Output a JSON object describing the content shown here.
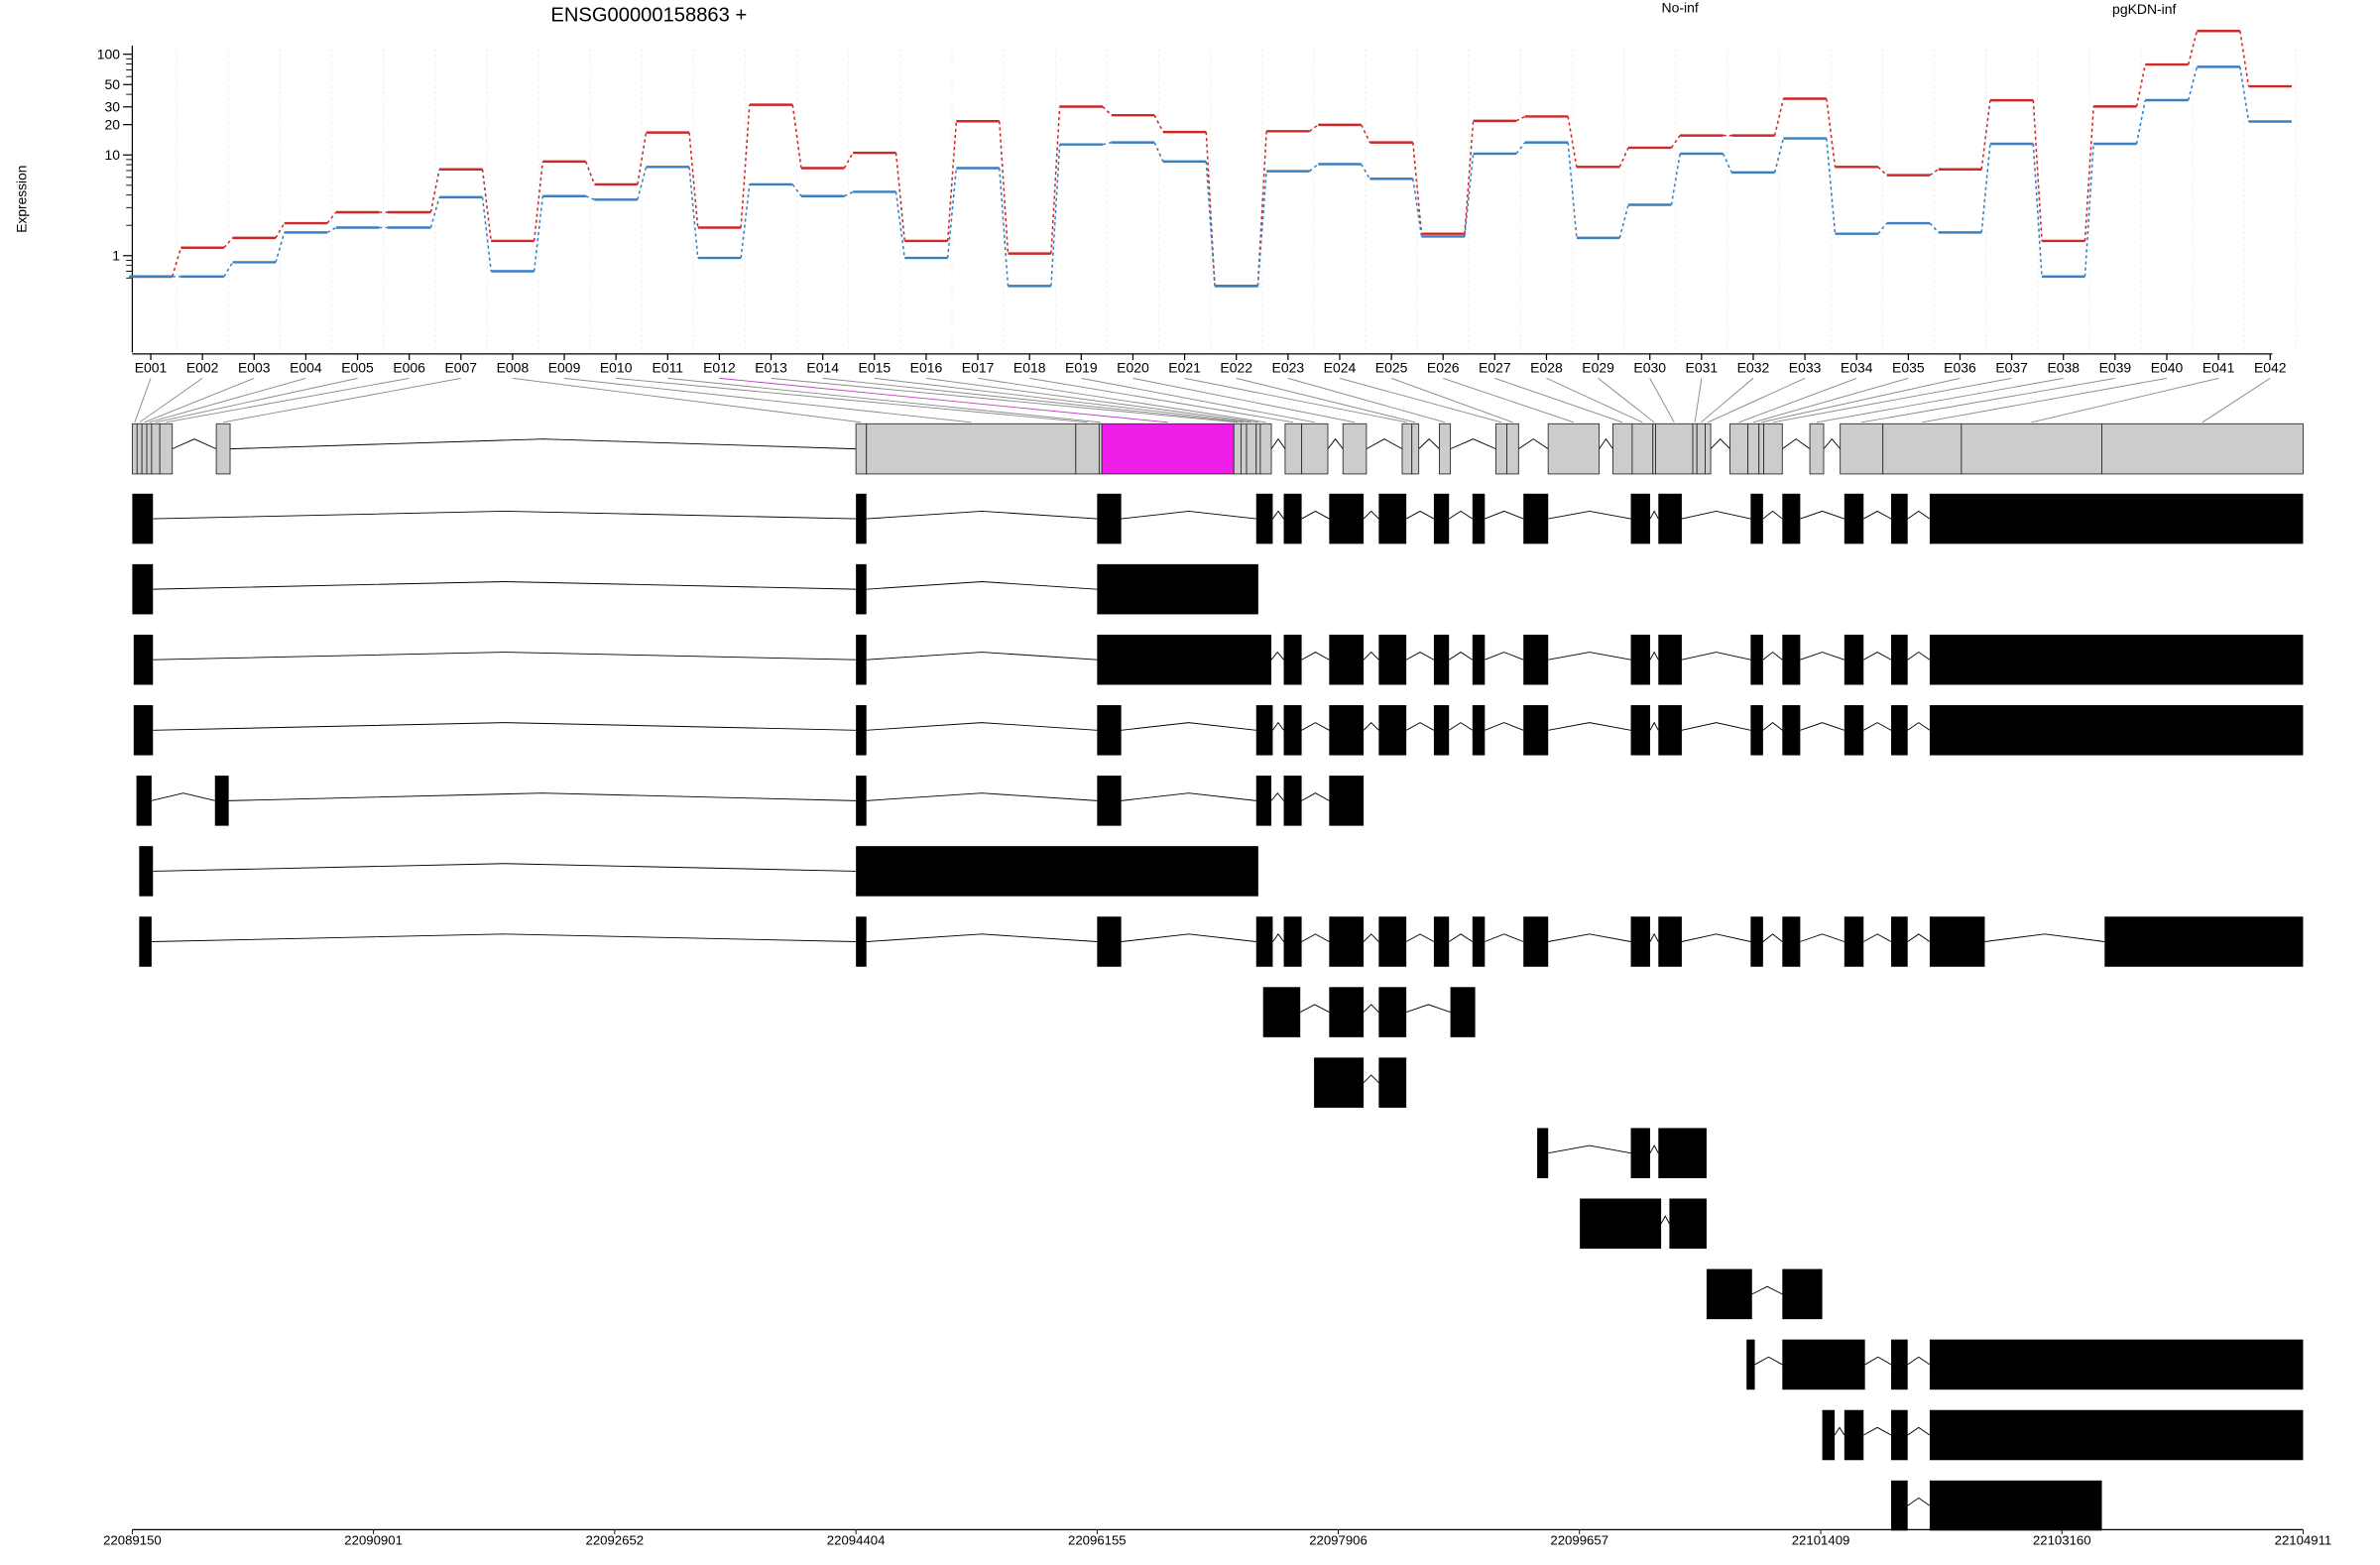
{
  "chart_data": {
    "type": "line",
    "title": "ENSG00000158863 +",
    "ylabel": "Expression",
    "y_scale": "log",
    "ylim": [
      0.5,
      170
    ],
    "yticks": [
      1,
      10,
      20,
      30,
      50,
      100
    ],
    "grid": "vertical",
    "legend_placement": "top-right",
    "categories": [
      "E001",
      "E002",
      "E003",
      "E004",
      "E005",
      "E006",
      "E007",
      "E008",
      "E009",
      "E010",
      "E011",
      "E012",
      "E013",
      "E014",
      "E015",
      "E016",
      "E017",
      "E018",
      "E019",
      "E020",
      "E021",
      "E022",
      "E023",
      "E024",
      "E025",
      "E026",
      "E027",
      "E028",
      "E029",
      "E030",
      "E031",
      "E032",
      "E033",
      "E034",
      "E035",
      "E036",
      "E037",
      "E038",
      "E039",
      "E040",
      "E041",
      "E042"
    ],
    "series": [
      {
        "name": "No-inf",
        "color": "#cc2a2a",
        "values": [
          0.62,
          1.2,
          1.5,
          2.1,
          2.7,
          2.7,
          7.2,
          1.4,
          8.6,
          5.1,
          16.7,
          1.9,
          31.5,
          7.4,
          10.5,
          1.4,
          21.6,
          1.05,
          30.2,
          24.8,
          16.9,
          0.5,
          17.2,
          19.9,
          13.3,
          1.65,
          21.8,
          24.1,
          7.6,
          11.8,
          15.6,
          15.6,
          36.2,
          7.6,
          6.3,
          7.2,
          34.9,
          1.4,
          30.3,
          79,
          170,
          48
        ]
      },
      {
        "name": "pgKDN-inf",
        "color": "#3a7fc0",
        "values": [
          0.62,
          0.62,
          0.86,
          1.7,
          1.9,
          1.9,
          3.8,
          0.7,
          3.9,
          3.6,
          7.6,
          0.95,
          5.1,
          3.9,
          4.3,
          0.95,
          7.4,
          0.5,
          12.7,
          13.3,
          8.6,
          0.5,
          6.9,
          8.1,
          5.8,
          1.55,
          10.3,
          13.3,
          1.5,
          3.2,
          10.3,
          6.7,
          14.6,
          1.65,
          2.1,
          1.7,
          12.9,
          0.62,
          12.9,
          35,
          75,
          21.5
        ]
      }
    ],
    "exons": [
      {
        "name": "E001",
        "start": 22089150,
        "end": 22089185,
        "exon_type": "known"
      },
      {
        "name": "E002",
        "start": 22089185,
        "end": 22089220,
        "exon_type": "known"
      },
      {
        "name": "E003",
        "start": 22089220,
        "end": 22089255,
        "exon_type": "known"
      },
      {
        "name": "E004",
        "start": 22089255,
        "end": 22089290,
        "exon_type": "known"
      },
      {
        "name": "E005",
        "start": 22089290,
        "end": 22089350,
        "exon_type": "known"
      },
      {
        "name": "E006",
        "start": 22089350,
        "end": 22089440,
        "exon_type": "known"
      },
      {
        "name": "E007",
        "start": 22089760,
        "end": 22089860,
        "exon_type": "known"
      },
      {
        "name": "E008",
        "start": 22094404,
        "end": 22094480,
        "exon_type": "known"
      },
      {
        "name": "E009",
        "start": 22094480,
        "end": 22096000,
        "exon_type": "known"
      },
      {
        "name": "E010",
        "start": 22096000,
        "end": 22096170,
        "exon_type": "known"
      },
      {
        "name": "E011",
        "start": 22096170,
        "end": 22096190,
        "exon_type": "known"
      },
      {
        "name": "E012",
        "start": 22096190,
        "end": 22097148,
        "exon_type": "highlighted"
      },
      {
        "name": "E013",
        "start": 22097148,
        "end": 22097200,
        "exon_type": "known"
      },
      {
        "name": "E014",
        "start": 22097200,
        "end": 22097240,
        "exon_type": "known"
      },
      {
        "name": "E015",
        "start": 22097240,
        "end": 22097310,
        "exon_type": "known"
      },
      {
        "name": "E016",
        "start": 22097310,
        "end": 22097340,
        "exon_type": "known"
      },
      {
        "name": "E017",
        "start": 22097340,
        "end": 22097420,
        "exon_type": "known"
      },
      {
        "name": "E018",
        "start": 22097520,
        "end": 22097640,
        "exon_type": "known"
      },
      {
        "name": "E019",
        "start": 22097640,
        "end": 22097830,
        "exon_type": "known"
      },
      {
        "name": "E020",
        "start": 22097940,
        "end": 22098110,
        "exon_type": "known"
      },
      {
        "name": "E021",
        "start": 22098370,
        "end": 22098440,
        "exon_type": "known"
      },
      {
        "name": "E022",
        "start": 22098440,
        "end": 22098490,
        "exon_type": "known"
      },
      {
        "name": "E023",
        "start": 22098640,
        "end": 22098720,
        "exon_type": "known"
      },
      {
        "name": "E024",
        "start": 22099050,
        "end": 22099130,
        "exon_type": "known"
      },
      {
        "name": "E025",
        "start": 22099130,
        "end": 22099215,
        "exon_type": "known"
      },
      {
        "name": "E026",
        "start": 22099430,
        "end": 22099800,
        "exon_type": "known"
      },
      {
        "name": "E027",
        "start": 22099900,
        "end": 22100040,
        "exon_type": "known"
      },
      {
        "name": "E028",
        "start": 22100040,
        "end": 22100190,
        "exon_type": "known"
      },
      {
        "name": "E029",
        "start": 22100190,
        "end": 22100210,
        "exon_type": "known"
      },
      {
        "name": "E030",
        "start": 22100210,
        "end": 22100480,
        "exon_type": "known"
      },
      {
        "name": "E031",
        "start": 22100480,
        "end": 22100510,
        "exon_type": "known"
      },
      {
        "name": "E032",
        "start": 22100510,
        "end": 22100570,
        "exon_type": "known"
      },
      {
        "name": "E033",
        "start": 22100570,
        "end": 22100610,
        "exon_type": "known"
      },
      {
        "name": "E034",
        "start": 22100750,
        "end": 22100880,
        "exon_type": "known"
      },
      {
        "name": "E035",
        "start": 22100880,
        "end": 22100960,
        "exon_type": "known"
      },
      {
        "name": "E036",
        "start": 22100960,
        "end": 22100995,
        "exon_type": "known"
      },
      {
        "name": "E037",
        "start": 22100995,
        "end": 22101130,
        "exon_type": "known"
      },
      {
        "name": "E038",
        "start": 22101330,
        "end": 22101430,
        "exon_type": "known"
      },
      {
        "name": "E039",
        "start": 22101550,
        "end": 22101860,
        "exon_type": "known"
      },
      {
        "name": "E040",
        "start": 22101860,
        "end": 22102430,
        "exon_type": "known"
      },
      {
        "name": "E041",
        "start": 22102430,
        "end": 22103450,
        "exon_type": "known"
      },
      {
        "name": "E042",
        "start": 22103450,
        "end": 22104911,
        "exon_type": "known"
      }
    ],
    "gene_range": [
      22089150,
      22104911
    ],
    "transcripts": [
      [
        [
          22089150,
          22089300
        ],
        [
          22094404,
          22094480
        ],
        [
          22096155,
          22096330
        ],
        [
          22097310,
          22097430
        ],
        [
          22097510,
          22097640
        ],
        [
          22097840,
          22098090
        ],
        [
          22098200,
          22098400
        ],
        [
          22098600,
          22098710
        ],
        [
          22098880,
          22098970
        ],
        [
          22099250,
          22099430
        ],
        [
          22100030,
          22100170
        ],
        [
          22100230,
          22100400
        ],
        [
          22100900,
          22100990
        ],
        [
          22101130,
          22101260
        ],
        [
          22101580,
          22101720
        ],
        [
          22101920,
          22102040
        ],
        [
          22102200,
          22104911
        ]
      ],
      [
        [
          22089150,
          22089300
        ],
        [
          22094404,
          22094480
        ],
        [
          22096155,
          22097325
        ]
      ],
      [
        [
          22089160,
          22089300
        ],
        [
          22094404,
          22094480
        ],
        [
          22096155,
          22097420
        ],
        [
          22097510,
          22097640
        ],
        [
          22097840,
          22098090
        ],
        [
          22098200,
          22098400
        ],
        [
          22098600,
          22098710
        ],
        [
          22098880,
          22098970
        ],
        [
          22099250,
          22099430
        ],
        [
          22100030,
          22100170
        ],
        [
          22100230,
          22100400
        ],
        [
          22100900,
          22100990
        ],
        [
          22101130,
          22101260
        ],
        [
          22101580,
          22101720
        ],
        [
          22101920,
          22102040
        ],
        [
          22102200,
          22104911
        ]
      ],
      [
        [
          22089160,
          22089300
        ],
        [
          22094404,
          22094480
        ],
        [
          22096155,
          22096330
        ],
        [
          22097310,
          22097430
        ],
        [
          22097510,
          22097640
        ],
        [
          22097840,
          22098090
        ],
        [
          22098200,
          22098400
        ],
        [
          22098600,
          22098710
        ],
        [
          22098880,
          22098970
        ],
        [
          22099250,
          22099430
        ],
        [
          22100030,
          22100170
        ],
        [
          22100230,
          22100400
        ],
        [
          22100900,
          22100990
        ],
        [
          22101130,
          22101260
        ],
        [
          22101580,
          22101720
        ],
        [
          22101920,
          22102040
        ],
        [
          22102200,
          22104911
        ]
      ],
      [
        [
          22089180,
          22089290
        ],
        [
          22089750,
          22089850
        ],
        [
          22094404,
          22094480
        ],
        [
          22096155,
          22096330
        ],
        [
          22097310,
          22097420
        ],
        [
          22097510,
          22097640
        ],
        [
          22097840,
          22098090
        ]
      ],
      [
        [
          22089200,
          22089300
        ],
        [
          22094404,
          22097325
        ]
      ],
      [
        [
          22089200,
          22089290
        ],
        [
          22094404,
          22094480
        ],
        [
          22096155,
          22096330
        ],
        [
          22097310,
          22097430
        ],
        [
          22097510,
          22097640
        ],
        [
          22097840,
          22098090
        ],
        [
          22098200,
          22098400
        ],
        [
          22098600,
          22098710
        ],
        [
          22098880,
          22098970
        ],
        [
          22099250,
          22099430
        ],
        [
          22100030,
          22100170
        ],
        [
          22100230,
          22100400
        ],
        [
          22100900,
          22100990
        ],
        [
          22101130,
          22101260
        ],
        [
          22101580,
          22101720
        ],
        [
          22101920,
          22102040
        ],
        [
          22102200,
          22102600
        ],
        [
          22103470,
          22104911
        ]
      ],
      [
        [
          22097360,
          22097630
        ],
        [
          22097840,
          22098090
        ],
        [
          22098200,
          22098400
        ],
        [
          22098720,
          22098900
        ]
      ],
      [
        [
          22097730,
          22098090
        ],
        [
          22098200,
          22098400
        ]
      ],
      [
        [
          22099350,
          22099430
        ],
        [
          22100030,
          22100170
        ],
        [
          22100230,
          22100580
        ]
      ],
      [
        [
          22099660,
          22100250
        ],
        [
          22100310,
          22100580
        ]
      ],
      [
        [
          22100580,
          22100910
        ],
        [
          22101130,
          22101420
        ]
      ],
      [
        [
          22100870,
          22100930
        ],
        [
          22101130,
          22101730
        ],
        [
          22101920,
          22102040
        ],
        [
          22102200,
          22104911
        ]
      ],
      [
        [
          22101420,
          22101510
        ],
        [
          22101580,
          22101720
        ],
        [
          22101920,
          22102040
        ],
        [
          22102200,
          22104911
        ]
      ],
      [
        [
          22101920,
          22102040
        ],
        [
          22102200,
          22103450
        ]
      ]
    ],
    "genomic_axis_ticks": [
      "22089150",
      "22090901",
      "22092652",
      "22094404",
      "22096155",
      "22097906",
      "22099657",
      "22101409",
      "22103160",
      "22104911"
    ],
    "y_tick_labels": [
      "1",
      "10",
      "20",
      "30",
      "50",
      "100"
    ]
  }
}
